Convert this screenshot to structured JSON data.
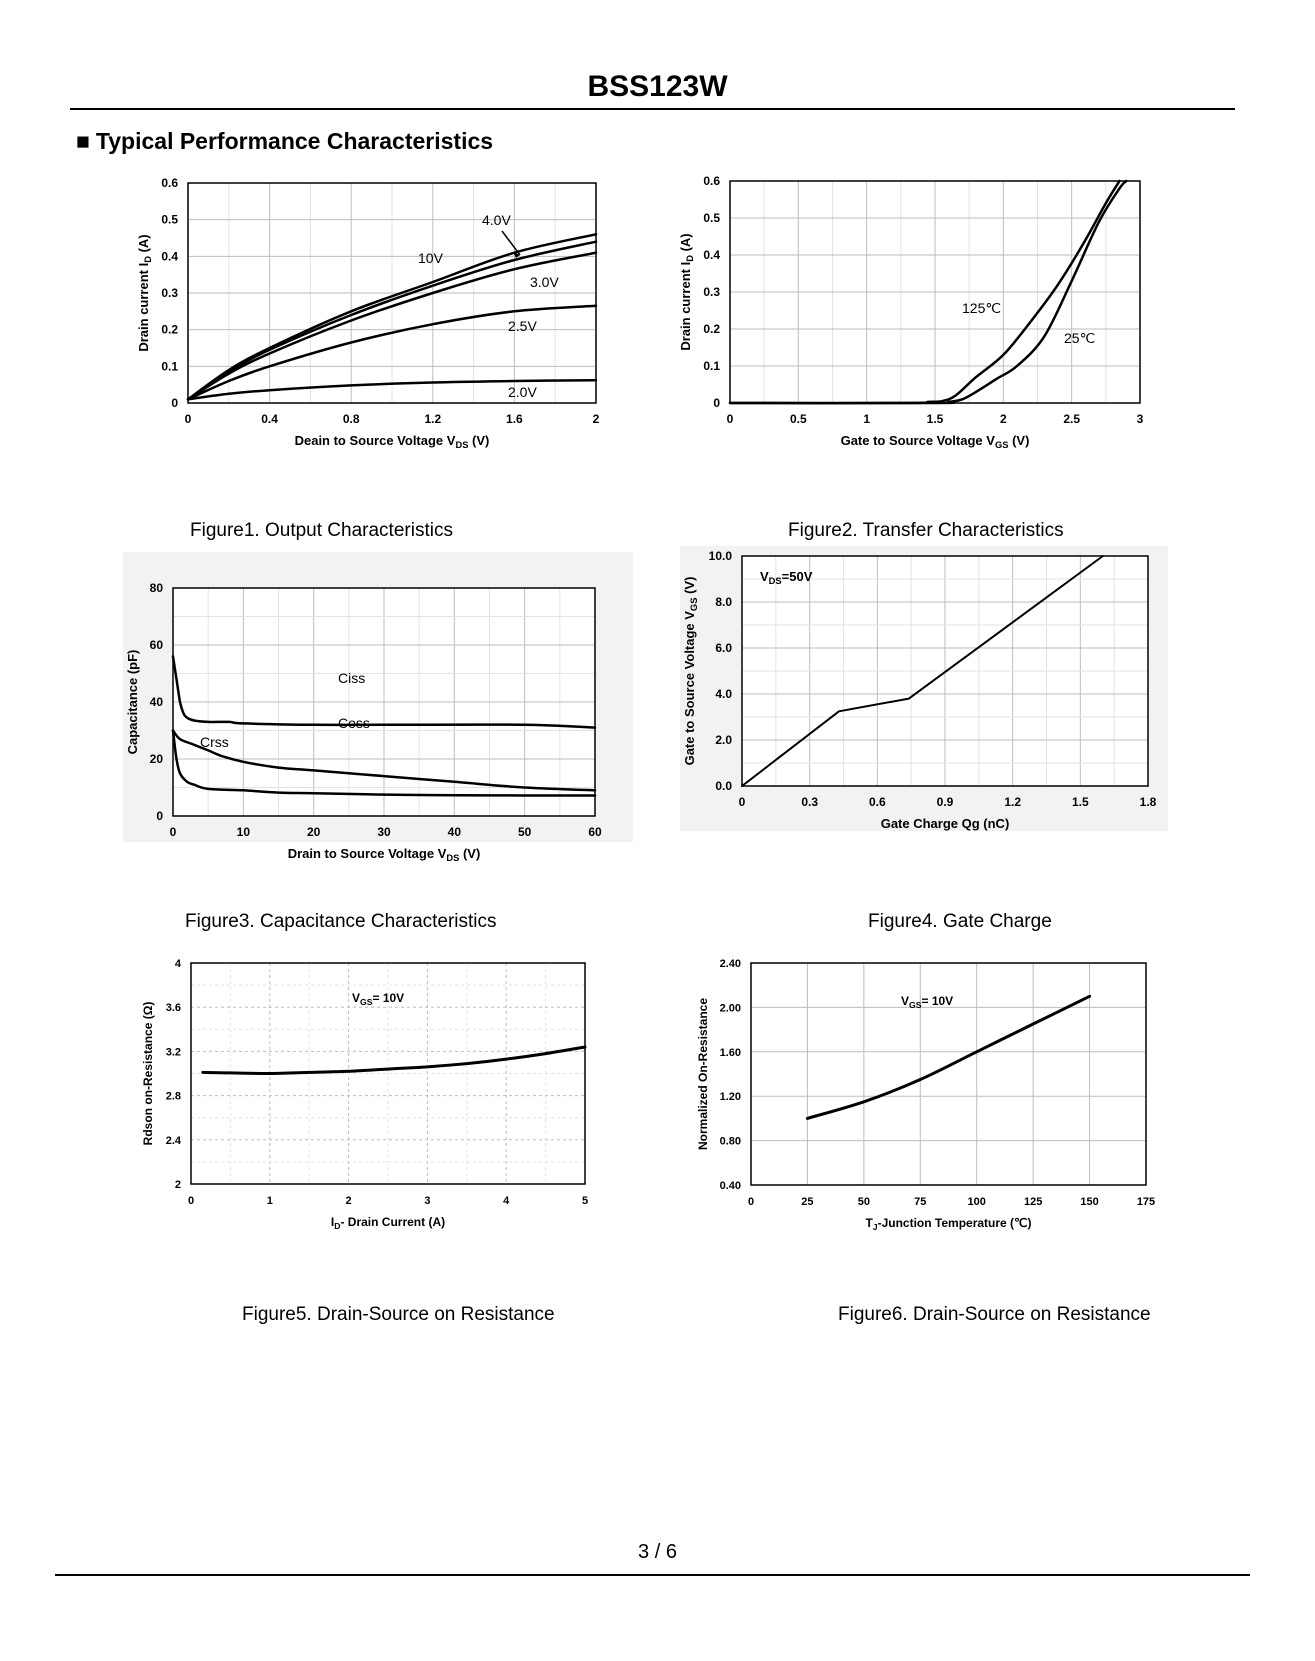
{
  "header": {
    "title": "BSS123W",
    "section_bullet": "■",
    "section": "Typical Performance Characteristics"
  },
  "chart_data": [
    {
      "type": "line",
      "title": "Figure1.  Output Characteristics",
      "xlabel": "Deain to Source Voltage V",
      "xlabel_sub": "DS",
      "xlabel_suffix": " (V)",
      "ylabel": "Drain current I",
      "ylabel_sub": "D",
      "ylabel_suffix": " (A)",
      "xlim": [
        0,
        2
      ],
      "ylim": [
        0,
        0.6
      ],
      "xticks": [
        0,
        0.4,
        0.8,
        1.2,
        1.6,
        2
      ],
      "xticklabels": [
        "0",
        "0.4",
        "0.8",
        "1.2",
        "1.6",
        "2"
      ],
      "yticks": [
        0,
        0.1,
        0.2,
        0.3,
        0.4,
        0.5,
        0.6
      ],
      "yticklabels": [
        "0",
        "0.1",
        "0.2",
        "0.3",
        "0.4",
        "0.5",
        "0.6"
      ],
      "series": [
        {
          "name": "10V",
          "x": [
            0,
            0.2,
            0.4,
            0.8,
            1.2,
            1.6,
            2
          ],
          "y": [
            0.01,
            0.09,
            0.15,
            0.25,
            0.33,
            0.41,
            0.46
          ]
        },
        {
          "name": "4.0V",
          "x": [
            0,
            0.2,
            0.4,
            0.8,
            1.2,
            1.6,
            2
          ],
          "y": [
            0.01,
            0.085,
            0.145,
            0.24,
            0.32,
            0.39,
            0.44
          ]
        },
        {
          "name": "3.0V",
          "x": [
            0,
            0.2,
            0.4,
            0.8,
            1.2,
            1.6,
            2
          ],
          "y": [
            0.01,
            0.08,
            0.135,
            0.225,
            0.3,
            0.365,
            0.41
          ]
        },
        {
          "name": "2.5V",
          "x": [
            0,
            0.2,
            0.4,
            0.8,
            1.2,
            1.6,
            2
          ],
          "y": [
            0.01,
            0.06,
            0.1,
            0.165,
            0.215,
            0.25,
            0.265
          ]
        },
        {
          "name": "2.0V",
          "x": [
            0,
            0.2,
            0.4,
            0.8,
            1.2,
            1.6,
            2
          ],
          "y": [
            0.01,
            0.025,
            0.035,
            0.048,
            0.056,
            0.06,
            0.062
          ]
        }
      ]
    },
    {
      "type": "line",
      "title": "Figure2.  Transfer Characteristics",
      "xlabel": "Gate to  Source Voltage V",
      "xlabel_sub": "GS",
      "xlabel_suffix": " (V)",
      "ylabel": "Drain current I",
      "ylabel_sub": "D",
      "ylabel_suffix": " (A)",
      "xlim": [
        0,
        3
      ],
      "ylim": [
        0,
        0.6
      ],
      "xticks": [
        0,
        0.5,
        1,
        1.5,
        2,
        2.5,
        3
      ],
      "xticklabels": [
        "0",
        "0.5",
        "1",
        "1.5",
        "2",
        "2.5",
        "3"
      ],
      "yticks": [
        0,
        0.1,
        0.2,
        0.3,
        0.4,
        0.5,
        0.6
      ],
      "yticklabels": [
        "0",
        "0.1",
        "0.2",
        "0.3",
        "0.4",
        "0.5",
        "0.6"
      ],
      "series": [
        {
          "name": "125℃",
          "x": [
            0,
            1.3,
            1.45,
            1.55,
            1.65,
            1.8,
            2.0,
            2.2,
            2.4,
            2.6,
            2.75,
            2.85
          ],
          "y": [
            0,
            0,
            0.003,
            0.005,
            0.02,
            0.07,
            0.13,
            0.22,
            0.32,
            0.44,
            0.54,
            0.6
          ]
        },
        {
          "name": "25℃",
          "x": [
            0,
            1.5,
            1.6,
            1.7,
            1.8,
            1.95,
            2.1,
            2.3,
            2.5,
            2.7,
            2.85,
            2.9
          ],
          "y": [
            0,
            0,
            0.003,
            0.01,
            0.03,
            0.065,
            0.1,
            0.18,
            0.33,
            0.49,
            0.58,
            0.6
          ]
        }
      ]
    },
    {
      "type": "line",
      "title": "Figure3.  Capacitance Characteristics",
      "xlabel": "Drain to Source Voltage V",
      "xlabel_sub": "DS",
      "xlabel_suffix": " (V)",
      "ylabel": "Capacitance (pF)",
      "xlim": [
        0,
        60
      ],
      "ylim": [
        0,
        80
      ],
      "xticks": [
        0,
        10,
        20,
        30,
        40,
        50,
        60
      ],
      "xticklabels": [
        "0",
        "10",
        "20",
        "30",
        "40",
        "50",
        "60"
      ],
      "yticks": [
        0,
        20,
        40,
        60,
        80
      ],
      "yticklabels": [
        "0",
        "20",
        "40",
        "60",
        "80"
      ],
      "series": [
        {
          "name": "Ciss",
          "x": [
            0,
            0.5,
            1,
            1.5,
            2,
            3,
            5,
            8,
            10,
            20,
            30,
            50,
            60
          ],
          "y": [
            56,
            48,
            40,
            36,
            34.5,
            33.5,
            33,
            33,
            32.5,
            32,
            32,
            32,
            31
          ]
        },
        {
          "name": "Coss",
          "x": [
            0,
            1,
            3,
            5,
            7,
            10,
            15,
            20,
            30,
            40,
            50,
            60
          ],
          "y": [
            30,
            27,
            25,
            23,
            21,
            19,
            17,
            16,
            14,
            12,
            10,
            9
          ]
        },
        {
          "name": "Crss",
          "x": [
            0,
            0.5,
            1,
            2,
            3,
            5,
            10,
            15,
            20,
            30,
            40,
            50,
            60
          ],
          "y": [
            30,
            20,
            15,
            12,
            11,
            9.5,
            9,
            8.2,
            8,
            7.5,
            7.3,
            7.2,
            7.2
          ]
        }
      ]
    },
    {
      "type": "line",
      "title": "Figure4. Gate Charge",
      "xlabel": "Gate Charge Qg (nC)",
      "ylabel": "Gate to Source  Voltage V",
      "ylabel_sub": "GS",
      "ylabel_suffix": " (V)",
      "xlim": [
        0,
        1.8
      ],
      "ylim": [
        0,
        10
      ],
      "xticks": [
        0,
        0.3,
        0.6,
        0.9,
        1.2,
        1.5,
        1.8
      ],
      "xticklabels": [
        "0",
        "0.3",
        "0.6",
        "0.9",
        "1.2",
        "1.5",
        "1.8"
      ],
      "yticks": [
        0,
        2,
        4,
        6,
        8,
        10
      ],
      "yticklabels": [
        "0.0",
        "2.0",
        "4.0",
        "6.0",
        "8.0",
        "10.0"
      ],
      "annotation": "V",
      "annotation_sub": "DS",
      "annotation_suffix": "=50V",
      "series": [
        {
          "name": "VGS",
          "x": [
            0,
            0.43,
            0.74,
            1.6
          ],
          "y": [
            0,
            3.25,
            3.8,
            10
          ]
        }
      ]
    },
    {
      "type": "line",
      "title": "Figure5. Drain-Source on Resistance",
      "xlabel": "I",
      "xlabel_sub": "D",
      "xlabel_suffix": "- Drain Current (A)",
      "ylabel": "Rdson on-Resistance (Ω)",
      "xlim": [
        0,
        5
      ],
      "ylim": [
        2,
        4
      ],
      "xticks": [
        0,
        1,
        2,
        3,
        4,
        5
      ],
      "xticklabels": [
        "0",
        "1",
        "2",
        "3",
        "4",
        "5"
      ],
      "yticks": [
        2,
        2.4,
        2.8,
        3.2,
        3.6,
        4
      ],
      "yticklabels": [
        "2",
        "2.4",
        "2.8",
        "3.2",
        "3.6",
        "4"
      ],
      "annotation": "V",
      "annotation_sub": "GS",
      "annotation_suffix": "= 10V",
      "series": [
        {
          "name": "Rdson",
          "x": [
            0.15,
            0.5,
            1,
            1.5,
            2,
            2.5,
            3,
            3.5,
            4,
            4.5,
            5
          ],
          "y": [
            3.01,
            3.005,
            3.0,
            3.01,
            3.02,
            3.04,
            3.06,
            3.09,
            3.13,
            3.18,
            3.24
          ]
        }
      ]
    },
    {
      "type": "line",
      "title": "Figure6. Drain-Source on Resistance",
      "xlabel": "T",
      "xlabel_sub": "J",
      "xlabel_suffix": "-Junction Temperature (℃)",
      "ylabel": "Normalized On-Resistance",
      "xlim": [
        0,
        175
      ],
      "ylim": [
        0.4,
        2.4
      ],
      "xticks": [
        0,
        25,
        50,
        75,
        100,
        125,
        150,
        175
      ],
      "xticklabels": [
        "0",
        "25",
        "50",
        "75",
        "100",
        "125",
        "150",
        "175"
      ],
      "yticks": [
        0.4,
        0.8,
        1.2,
        1.6,
        2.0,
        2.4
      ],
      "yticklabels": [
        "0.40",
        "0.80",
        "1.20",
        "1.60",
        "2.00",
        "2.40"
      ],
      "annotation": "V",
      "annotation_sub": "GS",
      "annotation_suffix": "= 10V",
      "series": [
        {
          "name": "Normalized",
          "x": [
            25,
            50,
            75,
            100,
            125,
            150
          ],
          "y": [
            1.0,
            1.15,
            1.35,
            1.6,
            1.85,
            2.1
          ]
        }
      ]
    }
  ],
  "footer": {
    "page": "3 / 6"
  }
}
